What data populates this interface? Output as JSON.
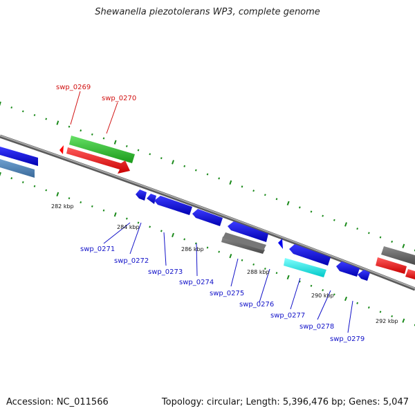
{
  "title": "Shewanella piezotolerans WP3, complete genome",
  "footer": {
    "accession": "Accession: NC_011566",
    "summary": "Topology: circular; Length: 5,396,476 bp; Genes: 5,047"
  },
  "colors": {
    "backbone": "#8c8c8c",
    "tick": "#1a8a1a",
    "forward_label": "#d11010",
    "reverse_label": "#1010c8",
    "red": "#ff0000",
    "green": "#33cc33",
    "blue": "#0000ee",
    "steelblue": "#4a82b8",
    "gray": "#6e6e6e",
    "cyan": "#00ffff"
  },
  "kbp_labels": [
    "282 kbp",
    "284 kbp",
    "286 kbp",
    "288 kbp",
    "290 kbp",
    "292 kbp"
  ],
  "forward_genes": [
    {
      "id": "swp_0269",
      "label": "swp_0269",
      "color": "red"
    },
    {
      "id": "swp_0270",
      "label": "swp_0270",
      "color": "green"
    }
  ],
  "reverse_genes": [
    {
      "id": "swp_0271",
      "label": "swp_0271",
      "color": "blue"
    },
    {
      "id": "swp_0272",
      "label": "swp_0272",
      "color": "blue"
    },
    {
      "id": "swp_0273",
      "label": "swp_0273",
      "color": "blue"
    },
    {
      "id": "swp_0274",
      "label": "swp_0274",
      "color": "blue"
    },
    {
      "id": "swp_0275",
      "label": "swp_0275",
      "color": "gray"
    },
    {
      "id": "swp_0276",
      "label": "swp_0276",
      "color": "blue"
    },
    {
      "id": "swp_0277",
      "label": "swp_0277",
      "color": "cyan"
    },
    {
      "id": "swp_0278",
      "label": "swp_0278",
      "color": "blue"
    },
    {
      "id": "swp_0279",
      "label": "swp_0279",
      "color": "blue"
    }
  ]
}
